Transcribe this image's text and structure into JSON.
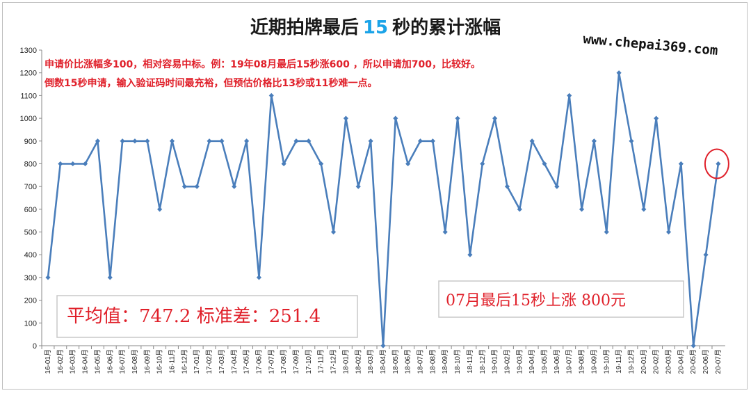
{
  "title": {
    "prefix": "近期拍牌最后",
    "number": "15",
    "suffix": "秒的累计涨幅"
  },
  "website": "www.chepai369.com",
  "notes": [
    "申请价比涨幅多100，相对容易中标。例：19年08月最后15秒涨600 ，所以申请加700，比较好。",
    "倒数15秒申请，输入验证码时间最充裕，但预估价格比13秒或11秒难一点。"
  ],
  "stats_box": "平均值：747.2 标准差：251.4",
  "latest_box": "07月最后15秒上涨 800元",
  "colors": {
    "line": "#4a7ebb",
    "note": "#e0202a",
    "title_number": "#1aa3e8",
    "highlight": "#e0202a"
  },
  "chart_data": {
    "type": "line",
    "ylim": [
      0,
      1300
    ],
    "yticks": [
      0,
      100,
      200,
      300,
      400,
      500,
      600,
      700,
      800,
      900,
      1000,
      1100,
      1200,
      1300
    ],
    "grid": false,
    "categories": [
      "16-01月",
      "16-02月",
      "16-03月",
      "16-04月",
      "16-05月",
      "16-06月",
      "16-07月",
      "16-08月",
      "16-09月",
      "16-10月",
      "16-11月",
      "16-12月",
      "17-01月",
      "17-02月",
      "17-03月",
      "17-04月",
      "17-05月",
      "17-06月",
      "17-07月",
      "17-08月",
      "17-09月",
      "17-10月",
      "17-11月",
      "17-12月",
      "18-01月",
      "18-02月",
      "18-03月",
      "18-04月",
      "18-05月",
      "18-06月",
      "18-07月",
      "18-08月",
      "18-09月",
      "18-10月",
      "18-11月",
      "18-12月",
      "19-01月",
      "19-02月",
      "19-03月",
      "19-04月",
      "19-05月",
      "19-06月",
      "19-07月",
      "19-08月",
      "19-09月",
      "19-10月",
      "19-11月",
      "19-12月",
      "20-01月",
      "20-02月",
      "20-03月",
      "20-04月",
      "20-05月",
      "20-06月",
      "20-07月"
    ],
    "values": [
      300,
      800,
      800,
      800,
      900,
      300,
      900,
      900,
      900,
      600,
      900,
      700,
      700,
      900,
      900,
      700,
      900,
      300,
      1100,
      800,
      900,
      900,
      800,
      500,
      1000,
      700,
      900,
      0,
      1000,
      800,
      900,
      900,
      500,
      1000,
      400,
      800,
      1000,
      700,
      600,
      900,
      800,
      700,
      1100,
      600,
      900,
      500,
      1200,
      900,
      600,
      1000,
      500,
      800,
      0,
      400,
      800
    ],
    "highlight_index": 54
  }
}
